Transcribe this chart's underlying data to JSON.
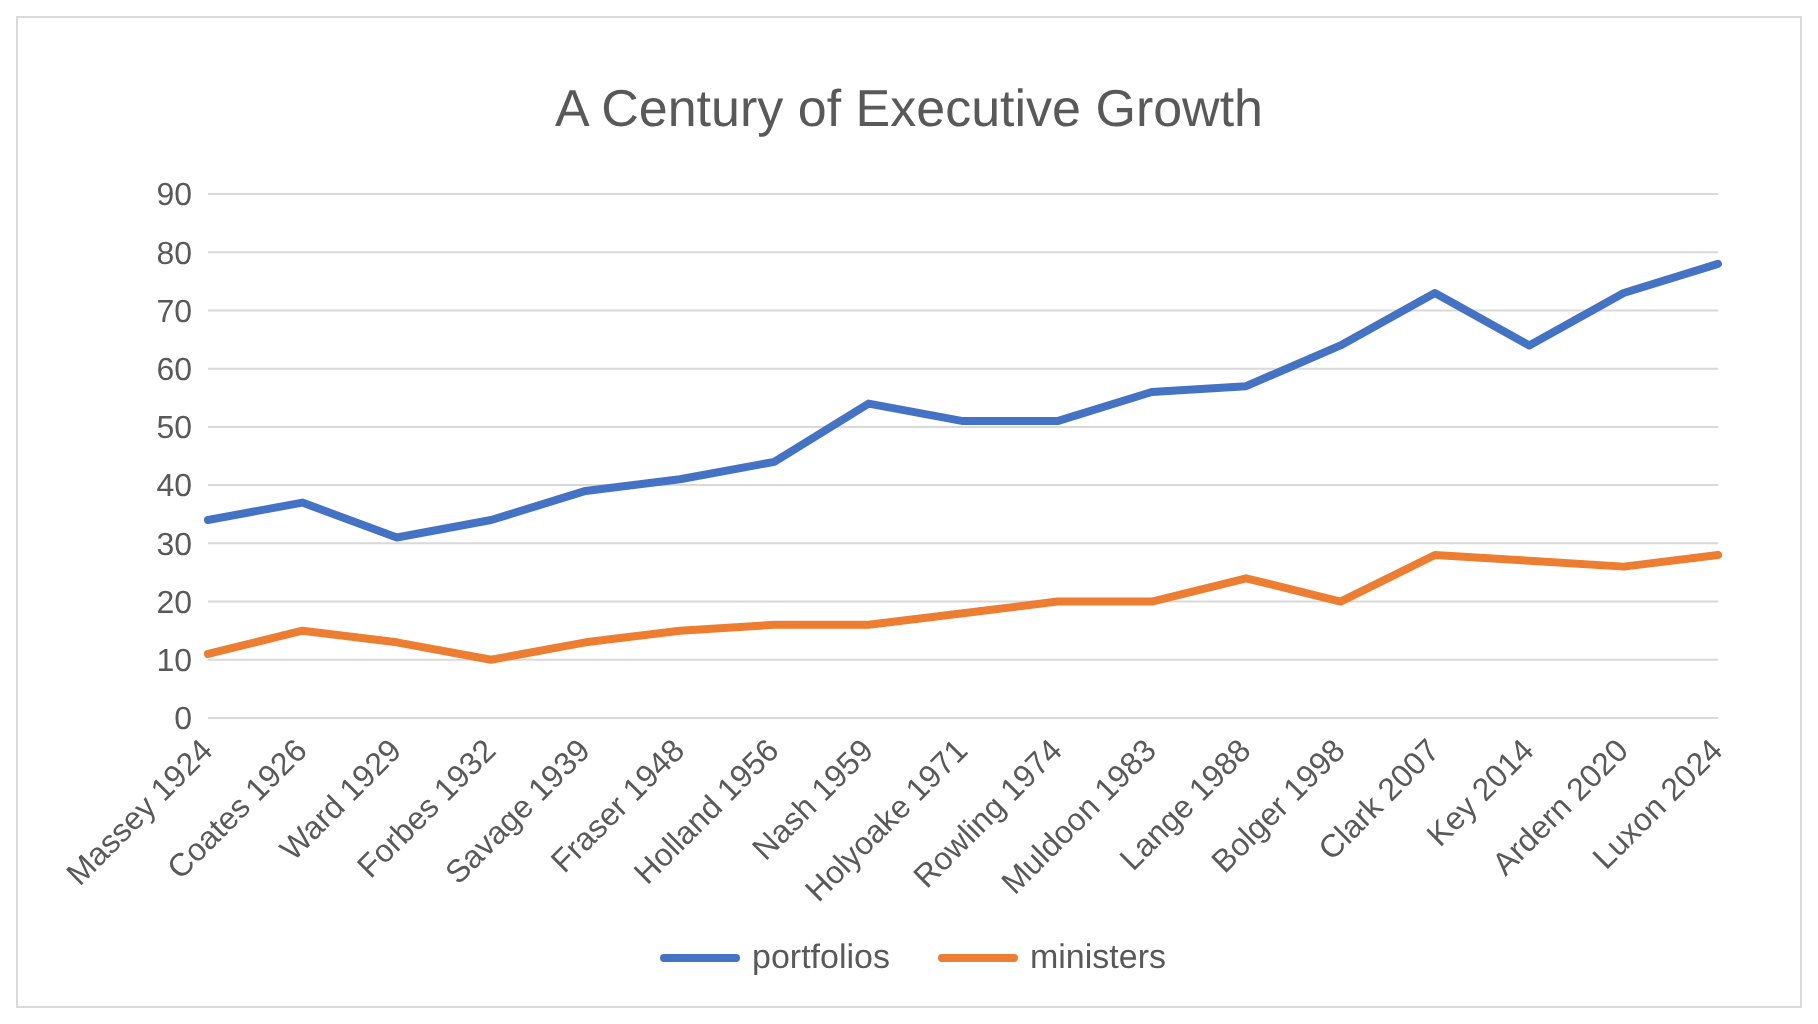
{
  "chart_data": {
    "type": "line",
    "title": "A Century of Executive Growth",
    "categories": [
      "Massey 1924",
      "Coates 1926",
      "Ward 1929",
      "Forbes 1932",
      "Savage 1939",
      "Fraser 1948",
      "Holland 1956",
      "Nash 1959",
      "Holyoake 1971",
      "Rowling 1974",
      "Muldoon 1983",
      "Lange 1988",
      "Bolger 1998",
      "Clark 2007",
      "Key 2014",
      "Ardern 2020",
      "Luxon 2024"
    ],
    "series": [
      {
        "name": "portfolios",
        "color": "#4472c4",
        "values": [
          34,
          37,
          31,
          34,
          39,
          41,
          44,
          54,
          51,
          51,
          56,
          57,
          64,
          73,
          64,
          73,
          78
        ]
      },
      {
        "name": "ministers",
        "color": "#ed7d31",
        "values": [
          11,
          15,
          13,
          10,
          13,
          15,
          16,
          16,
          18,
          20,
          20,
          24,
          20,
          28,
          27,
          26,
          28
        ]
      }
    ],
    "ylim": [
      0,
      90
    ],
    "yticks": [
      0,
      10,
      20,
      30,
      40,
      50,
      60,
      70,
      80,
      90
    ],
    "grid": "y",
    "legend": "bottom",
    "marker": "none"
  }
}
